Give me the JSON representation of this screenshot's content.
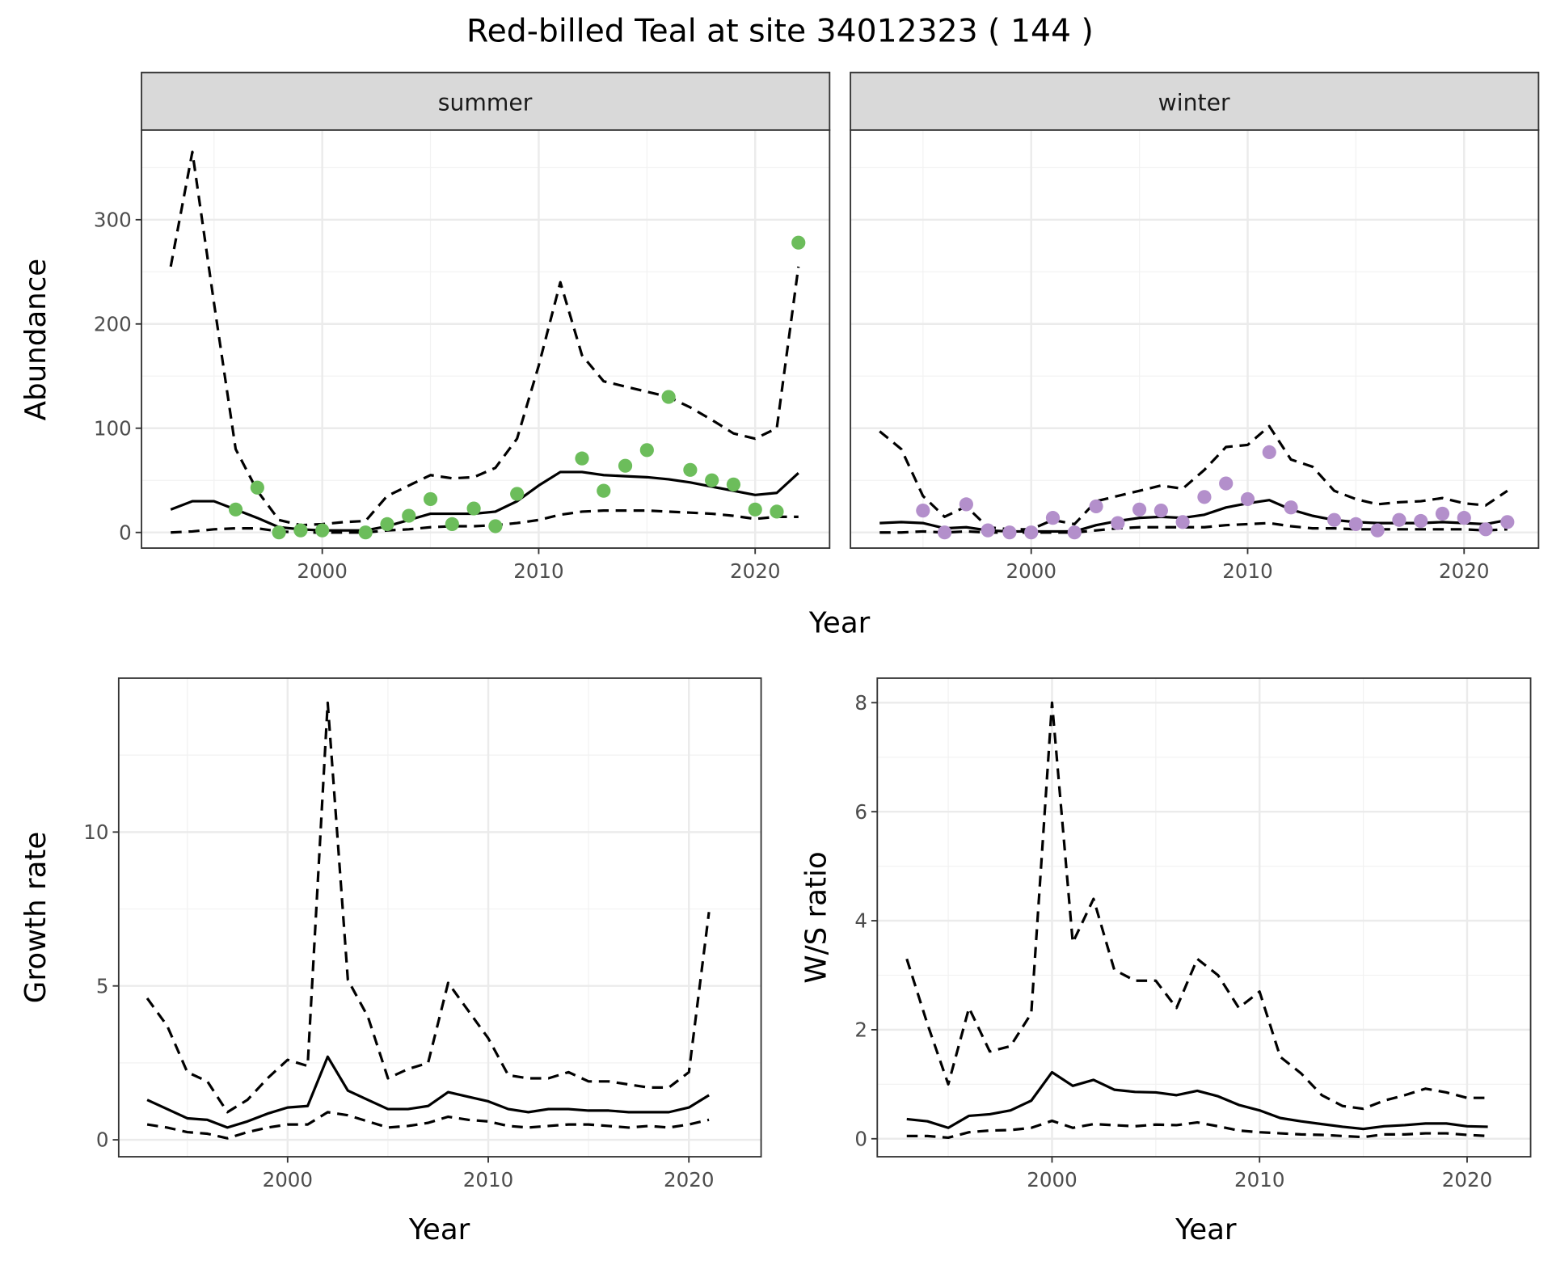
{
  "chart_data": [
    {
      "type": "line",
      "title": "Red-billed Teal at site 34012323 ( 144 )",
      "panel": "summer",
      "xlabel": "Year",
      "ylabel": "Abundance",
      "xlim": [
        1991.65,
        2023.44
      ],
      "ylim": [
        -15,
        386
      ],
      "xticks": [
        2000,
        2010,
        2020
      ],
      "yticks": [
        0,
        100,
        200,
        300
      ],
      "grid": true,
      "x": [
        1993,
        1994,
        1995,
        1996,
        1997,
        1998,
        1999,
        2000,
        2001,
        2002,
        2003,
        2004,
        2005,
        2006,
        2007,
        2008,
        2009,
        2010,
        2011,
        2012,
        2013,
        2014,
        2015,
        2016,
        2017,
        2018,
        2019,
        2020,
        2021,
        2022
      ],
      "series": [
        {
          "name": "upper",
          "style": "dashed",
          "values": [
            255,
            365,
            220,
            80,
            40,
            12,
            7,
            8,
            10,
            11,
            35,
            45,
            55,
            52,
            53,
            62,
            90,
            160,
            240,
            170,
            145,
            140,
            135,
            130,
            120,
            108,
            95,
            90,
            100,
            255
          ]
        },
        {
          "name": "mean",
          "style": "solid",
          "values": [
            22,
            30,
            30,
            22,
            14,
            5,
            3,
            2,
            2,
            2,
            6,
            12,
            18,
            18,
            18,
            20,
            30,
            45,
            58,
            58,
            55,
            54,
            53,
            51,
            48,
            44,
            40,
            36,
            38,
            57
          ]
        },
        {
          "name": "lower",
          "style": "dashed",
          "values": [
            0,
            1,
            3,
            4,
            4,
            1,
            0,
            0,
            0,
            0,
            2,
            3,
            5,
            6,
            6,
            7,
            9,
            12,
            17,
            20,
            21,
            21,
            21,
            20,
            19,
            18,
            16,
            13,
            15,
            15
          ]
        }
      ],
      "points": {
        "color": "#6cbd5b",
        "x": [
          1996,
          1997,
          1998,
          1999,
          2000,
          2002,
          2003,
          2004,
          2005,
          2006,
          2007,
          2008,
          2009,
          2012,
          2013,
          2014,
          2015,
          2016,
          2017,
          2018,
          2019,
          2020,
          2021,
          2022
        ],
        "y": [
          22,
          43,
          0,
          2,
          2,
          0,
          8,
          16,
          32,
          8,
          23,
          6,
          37,
          71,
          40,
          64,
          79,
          130,
          60,
          50,
          46,
          22,
          20,
          278
        ]
      }
    },
    {
      "type": "line",
      "panel": "winter",
      "xlabel": "Year",
      "ylabel": "Abundance",
      "xlim": [
        1991.65,
        2023.44
      ],
      "ylim": [
        -15,
        386
      ],
      "xticks": [
        2000,
        2010,
        2020
      ],
      "yticks": [
        0,
        100,
        200,
        300
      ],
      "grid": true,
      "x": [
        1993,
        1994,
        1995,
        1996,
        1997,
        1998,
        1999,
        2000,
        2001,
        2002,
        2003,
        2004,
        2005,
        2006,
        2007,
        2008,
        2009,
        2010,
        2011,
        2012,
        2013,
        2014,
        2015,
        2016,
        2017,
        2018,
        2019,
        2020,
        2021,
        2022
      ],
      "series": [
        {
          "name": "upper",
          "style": "dashed",
          "values": [
            97,
            80,
            35,
            15,
            25,
            5,
            3,
            3,
            12,
            8,
            30,
            35,
            40,
            45,
            42,
            60,
            82,
            84,
            102,
            70,
            63,
            40,
            32,
            27,
            29,
            30,
            33,
            28,
            26,
            40
          ]
        },
        {
          "name": "mean",
          "style": "solid",
          "values": [
            9,
            10,
            9,
            4,
            5,
            2,
            1,
            1,
            1,
            1,
            7,
            11,
            14,
            15,
            14,
            17,
            24,
            28,
            31,
            22,
            16,
            12,
            10,
            9,
            9,
            9,
            10,
            9,
            8,
            12
          ]
        },
        {
          "name": "lower",
          "style": "dashed",
          "values": [
            0,
            0,
            1,
            0,
            1,
            0,
            0,
            0,
            0,
            0,
            2,
            4,
            5,
            5,
            5,
            5,
            7,
            8,
            9,
            6,
            4,
            4,
            3,
            3,
            3,
            3,
            3,
            3,
            2,
            3
          ]
        }
      ],
      "points": {
        "color": "#b38fcb",
        "x": [
          1995,
          1996,
          1997,
          1998,
          1999,
          2000,
          2001,
          2002,
          2003,
          2004,
          2005,
          2006,
          2007,
          2008,
          2009,
          2010,
          2011,
          2012,
          2014,
          2015,
          2016,
          2017,
          2018,
          2019,
          2020,
          2021,
          2022
        ],
        "y": [
          21,
          0,
          27,
          2,
          0,
          0,
          14,
          0,
          25,
          9,
          22,
          21,
          10,
          34,
          47,
          32,
          77,
          24,
          12,
          8,
          2,
          12,
          11,
          18,
          14,
          3,
          10
        ]
      }
    },
    {
      "type": "line",
      "panel": "growth",
      "xlabel": "Year",
      "ylabel": "Growth rate",
      "xlim": [
        1991.58,
        2023.6
      ],
      "ylim": [
        -0.55,
        15.0
      ],
      "xticks": [
        2000,
        2010,
        2020
      ],
      "yticks": [
        0,
        5,
        10
      ],
      "grid": true,
      "x": [
        1993,
        1994,
        1995,
        1996,
        1997,
        1998,
        1999,
        2000,
        2001,
        2002,
        2003,
        2004,
        2005,
        2006,
        2007,
        2008,
        2009,
        2010,
        2011,
        2012,
        2013,
        2014,
        2015,
        2016,
        2017,
        2018,
        2019,
        2020,
        2021
      ],
      "series": [
        {
          "name": "upper",
          "style": "dashed",
          "values": [
            4.6,
            3.7,
            2.2,
            1.9,
            0.9,
            1.3,
            2.0,
            2.6,
            2.4,
            14.2,
            5.2,
            4.0,
            2.0,
            2.3,
            2.5,
            5.1,
            4.2,
            3.3,
            2.1,
            2.0,
            2.0,
            2.2,
            1.9,
            1.9,
            1.8,
            1.7,
            1.7,
            2.2,
            7.4
          ]
        },
        {
          "name": "mean",
          "style": "solid",
          "values": [
            1.3,
            1.0,
            0.7,
            0.65,
            0.4,
            0.6,
            0.85,
            1.05,
            1.1,
            2.7,
            1.6,
            1.3,
            1.0,
            1.0,
            1.1,
            1.55,
            1.4,
            1.25,
            1.0,
            0.9,
            1.0,
            1.0,
            0.95,
            0.95,
            0.9,
            0.9,
            0.9,
            1.05,
            1.45
          ]
        },
        {
          "name": "lower",
          "style": "dashed",
          "values": [
            0.5,
            0.4,
            0.25,
            0.2,
            0.05,
            0.25,
            0.4,
            0.5,
            0.5,
            0.9,
            0.8,
            0.6,
            0.4,
            0.45,
            0.55,
            0.75,
            0.65,
            0.6,
            0.45,
            0.4,
            0.45,
            0.5,
            0.5,
            0.45,
            0.4,
            0.45,
            0.4,
            0.5,
            0.65
          ]
        }
      ]
    },
    {
      "type": "line",
      "panel": "ws",
      "xlabel": "Year",
      "ylabel": "W/S ratio",
      "xlim": [
        1991.58,
        2023.06
      ],
      "ylim": [
        -0.33,
        8.45
      ],
      "xticks": [
        2000,
        2010,
        2020
      ],
      "yticks": [
        0,
        2,
        4,
        6,
        8
      ],
      "grid": true,
      "x": [
        1993,
        1994,
        1995,
        1996,
        1997,
        1998,
        1999,
        2000,
        2001,
        2002,
        2003,
        2004,
        2005,
        2006,
        2007,
        2008,
        2009,
        2010,
        2011,
        2012,
        2013,
        2014,
        2015,
        2016,
        2017,
        2018,
        2019,
        2020,
        2021
      ],
      "series": [
        {
          "name": "upper",
          "style": "dashed",
          "values": [
            3.3,
            2.1,
            1.0,
            2.4,
            1.6,
            1.7,
            2.3,
            8.0,
            3.6,
            4.4,
            3.1,
            2.9,
            2.9,
            2.4,
            3.3,
            3.0,
            2.4,
            2.7,
            1.5,
            1.2,
            0.8,
            0.6,
            0.55,
            0.7,
            0.8,
            0.92,
            0.85,
            0.75,
            0.75
          ]
        },
        {
          "name": "mean",
          "style": "solid",
          "values": [
            0.36,
            0.32,
            0.2,
            0.42,
            0.45,
            0.52,
            0.7,
            1.22,
            0.97,
            1.08,
            0.9,
            0.86,
            0.85,
            0.8,
            0.88,
            0.78,
            0.62,
            0.52,
            0.38,
            0.32,
            0.27,
            0.22,
            0.18,
            0.23,
            0.25,
            0.28,
            0.28,
            0.23,
            0.22
          ]
        },
        {
          "name": "lower",
          "style": "dashed",
          "values": [
            0.05,
            0.05,
            0.02,
            0.12,
            0.15,
            0.16,
            0.2,
            0.33,
            0.2,
            0.27,
            0.25,
            0.23,
            0.26,
            0.25,
            0.3,
            0.23,
            0.15,
            0.12,
            0.1,
            0.08,
            0.07,
            0.05,
            0.03,
            0.08,
            0.08,
            0.1,
            0.1,
            0.07,
            0.05
          ]
        }
      ]
    }
  ],
  "labels": {
    "title": "Red-billed Teal at site 34012323 ( 144 )",
    "strip_summer": "summer",
    "strip_winter": "winter",
    "top_xlabel": "Year",
    "top_ylabel": "Abundance",
    "growth_xlabel": "Year",
    "growth_ylabel": "Growth rate",
    "ws_xlabel": "Year",
    "ws_ylabel": "W/S ratio"
  }
}
